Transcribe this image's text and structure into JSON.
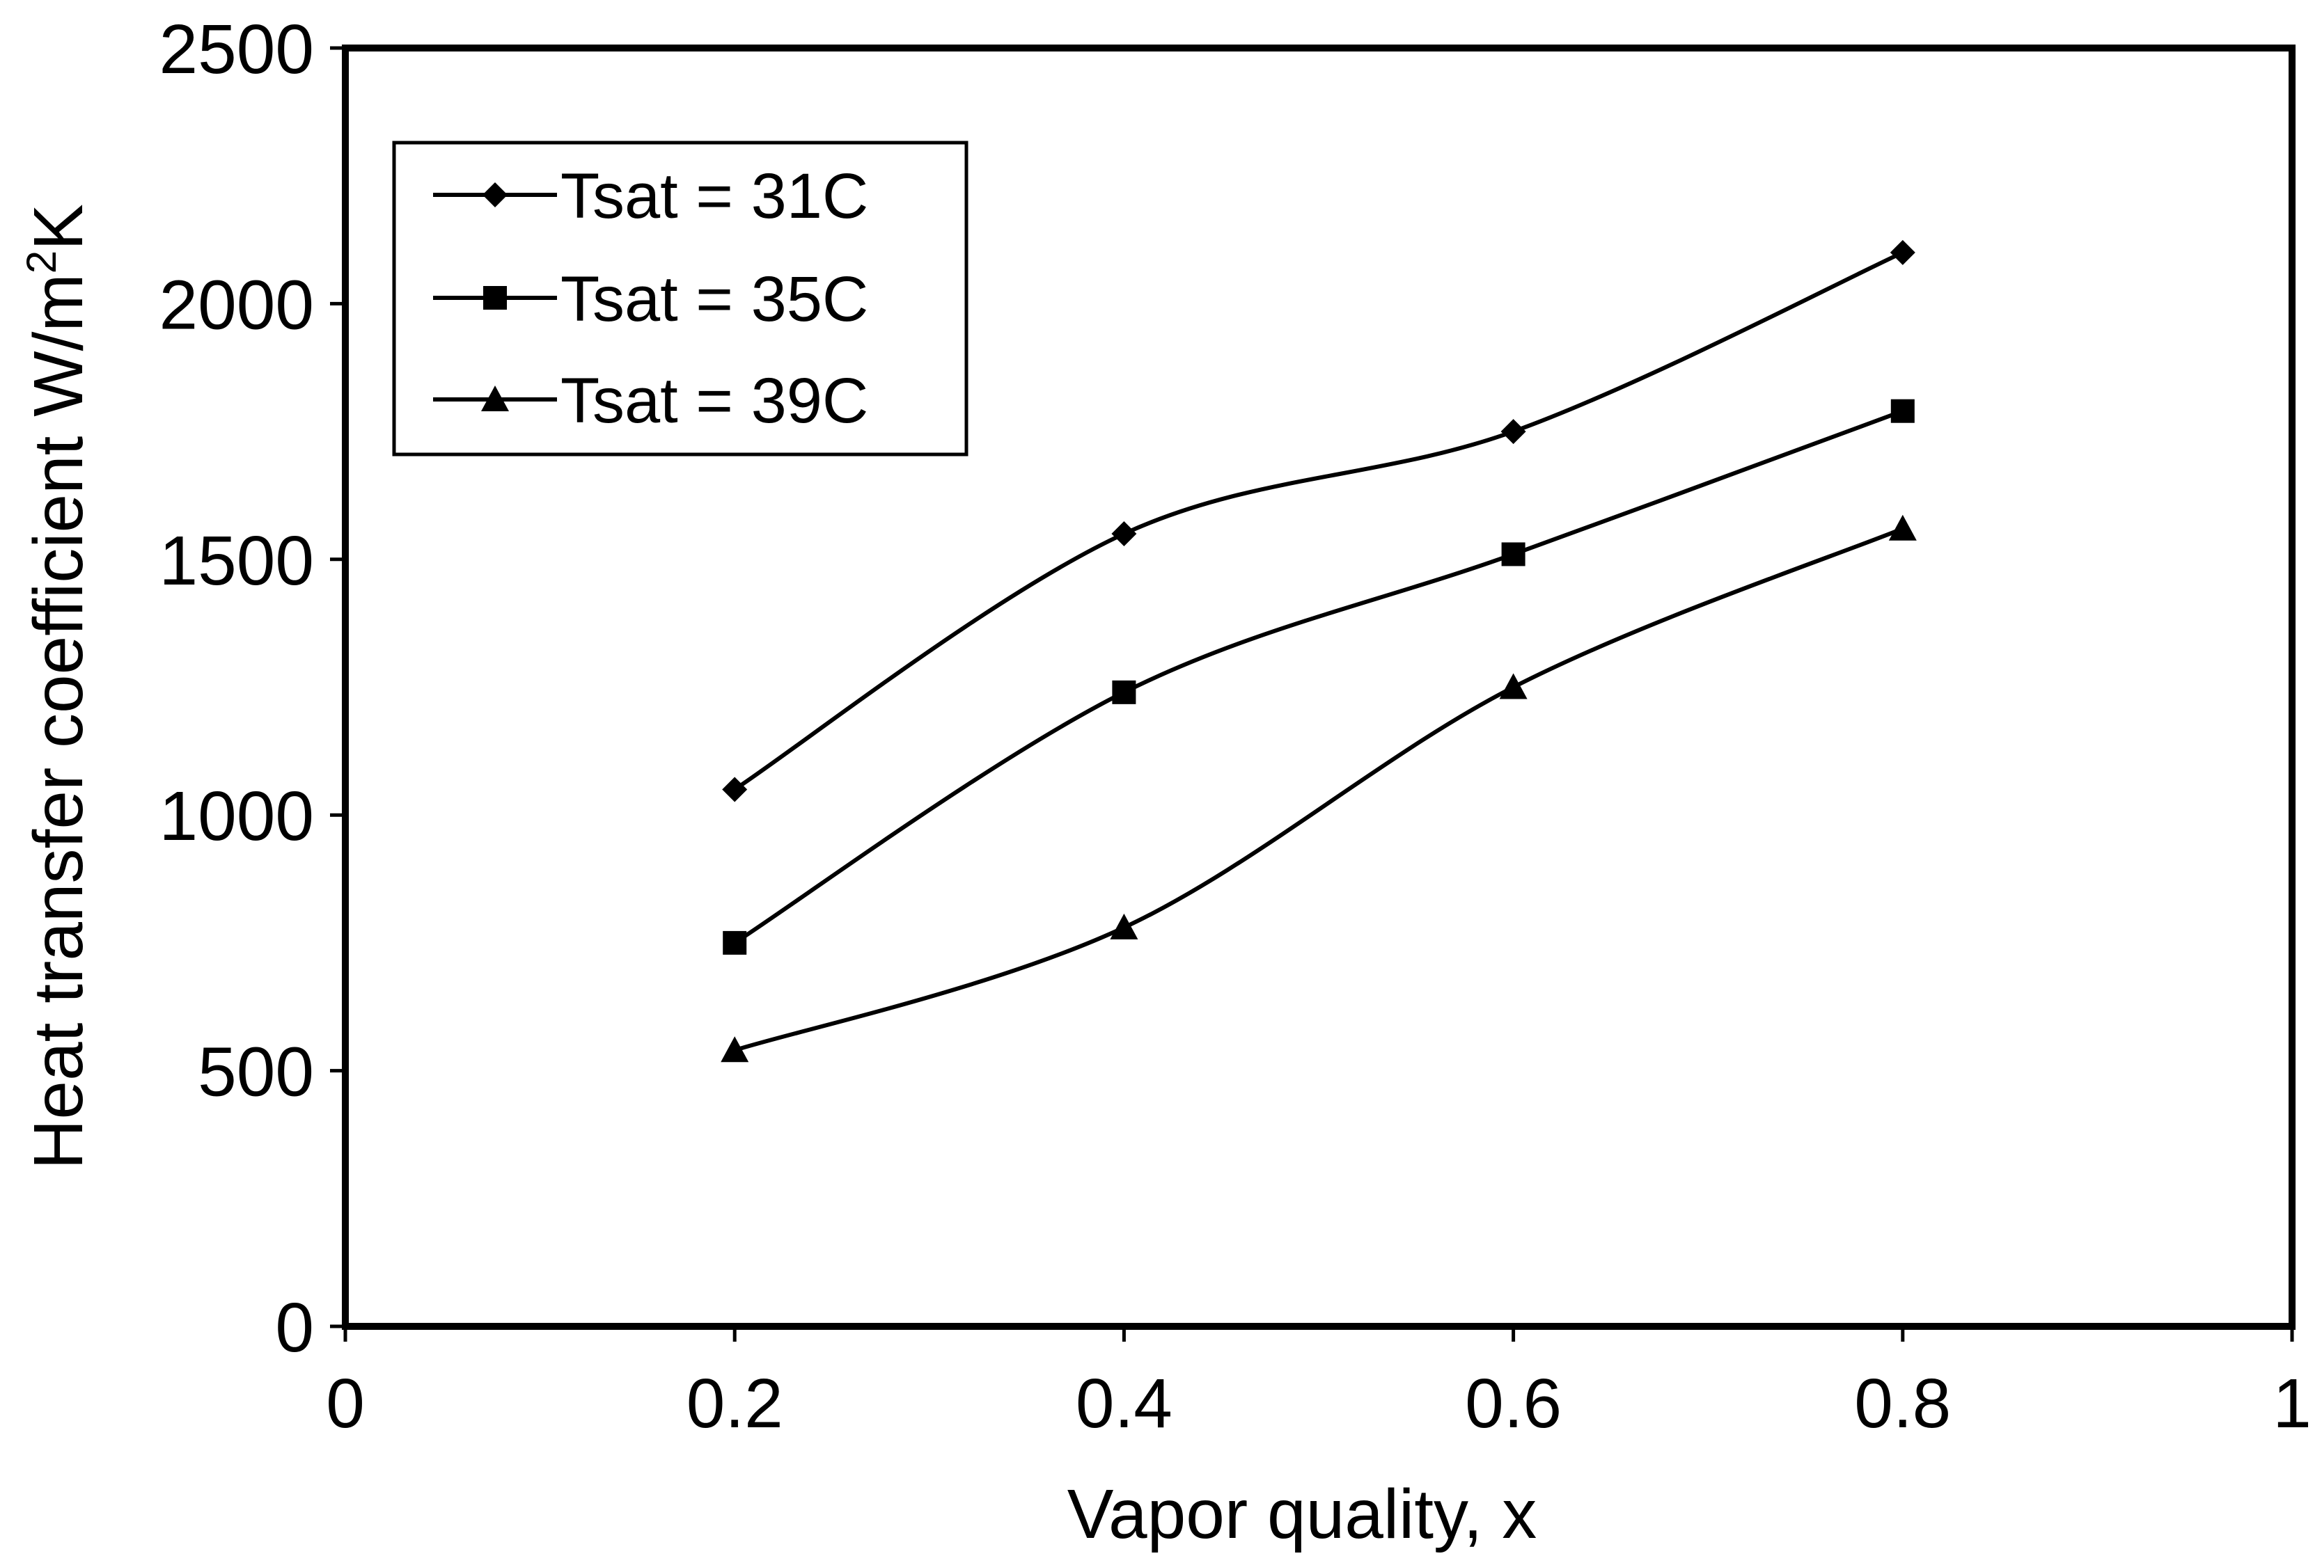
{
  "chart_data": {
    "type": "line",
    "title": "",
    "xlabel": "Vapor quality, x",
    "ylabel": {
      "main": "Heat transfer coefficient  W/m",
      "superscript": "2",
      "suffix": "K"
    },
    "xlim": [
      0,
      1
    ],
    "ylim": [
      0,
      2500
    ],
    "x_ticks": [
      "0",
      "0.2",
      "0.4",
      "0.6",
      "0.8",
      "1"
    ],
    "x_tick_values": [
      0,
      0.2,
      0.4,
      0.6,
      0.8,
      1
    ],
    "y_ticks": [
      "0",
      "500",
      "1000",
      "1500",
      "2000",
      "2500"
    ],
    "y_tick_values": [
      0,
      500,
      1000,
      1500,
      2000,
      2500
    ],
    "grid": false,
    "legend_position": "top-left",
    "x": [
      0.2,
      0.4,
      0.6,
      0.8
    ],
    "series": [
      {
        "name": "Tsat = 31C",
        "marker": "diamond",
        "values": [
          1050,
          1550,
          1750,
          2100
        ]
      },
      {
        "name": "Tsat = 35C",
        "marker": "square",
        "values": [
          750,
          1240,
          1510,
          1790
        ]
      },
      {
        "name": "Tsat = 39C",
        "marker": "triangle",
        "values": [
          540,
          780,
          1250,
          1560
        ]
      }
    ],
    "colors": {
      "line": "#000000",
      "marker": "#000000",
      "background": "#ffffff"
    }
  }
}
